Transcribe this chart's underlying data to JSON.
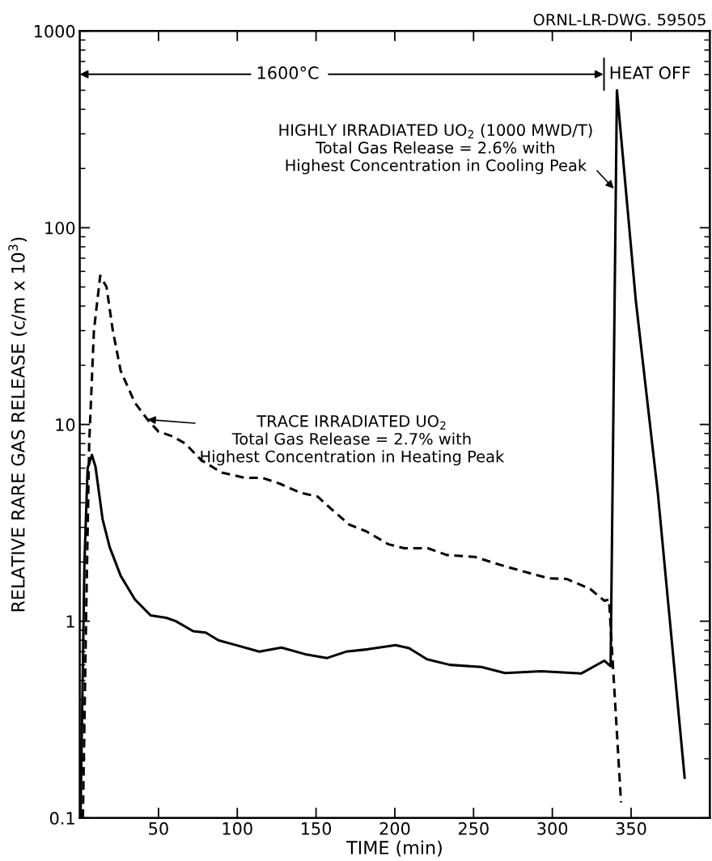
{
  "chart_data": {
    "type": "line",
    "xlabel": "TIME (min)",
    "ylabel": "RELATIVE RARE GAS RELEASE (c/m x 10$^{3}$)",
    "log": "y",
    "xlim": [
      0,
      400
    ],
    "xticks": [
      50,
      100,
      150,
      200,
      250,
      300,
      350
    ],
    "ylim": [
      0.1,
      1000
    ],
    "yticks": [
      0.1,
      1,
      10,
      100,
      1000
    ],
    "grid": false,
    "legend": false,
    "marker": "none",
    "series": [
      {
        "color": "#000000",
        "line_style": "dashed",
        "x": [
          2,
          4,
          6,
          9,
          13,
          17,
          21,
          26,
          35,
          43,
          50,
          59,
          67,
          77,
          90,
          105,
          116,
          127,
          140,
          151,
          160,
          171,
          182,
          196,
          206,
          221,
          233,
          251,
          271,
          298,
          309,
          324,
          333,
          336,
          343.6
        ],
        "values": [
          0.1,
          1,
          8,
          30,
          57,
          50,
          30,
          18.7,
          12.9,
          10.6,
          9.2,
          8.7,
          8.0,
          6.6,
          5.7,
          5.35,
          5.35,
          5.0,
          4.5,
          4.3,
          3.7,
          3.1,
          2.86,
          2.46,
          2.35,
          2.35,
          2.17,
          2.12,
          1.89,
          1.65,
          1.64,
          1.46,
          1.27,
          1.29,
          0.12
        ]
      },
      {
        "color": "#000000",
        "line_style": "solid",
        "x": [
          0.5,
          3,
          5,
          7.7,
          10,
          14.5,
          19,
          26,
          35,
          45,
          55,
          61,
          72,
          80,
          88,
          99.5,
          114,
          128,
          143,
          157,
          169,
          183,
          200.5,
          209,
          220.5,
          235,
          255,
          270,
          293,
          318.5,
          333,
          337,
          341,
          353,
          367,
          384
        ],
        "values": [
          0.1,
          2,
          6,
          7.0,
          6.1,
          3.3,
          2.38,
          1.7,
          1.29,
          1.07,
          1.04,
          1.0,
          0.89,
          0.875,
          0.8,
          0.755,
          0.7,
          0.735,
          0.68,
          0.65,
          0.7,
          0.72,
          0.755,
          0.73,
          0.64,
          0.6,
          0.585,
          0.545,
          0.557,
          0.543,
          0.63,
          0.59,
          500,
          42.6,
          4.46,
          0.16
        ]
      }
    ],
    "annotations": [
      "ORNL-LR-DWG. 59505",
      "1600°C",
      "HEAT OFF",
      {
        "text": "HIGHLY IRRADIATED UO$_{2}$ (1000 MWD/T)\nTotal Gas Release = 2.6% with\nHighest Concentration in Cooling Peak",
        "x": 339,
        "y": 158
      },
      {
        "text": "TRACE IRRADIATED UO$_{2}$\nTotal Gas Release = 2.7% with\nHighest Concentration in Heating Peak",
        "x": 43,
        "y": 10.6
      }
    ]
  }
}
